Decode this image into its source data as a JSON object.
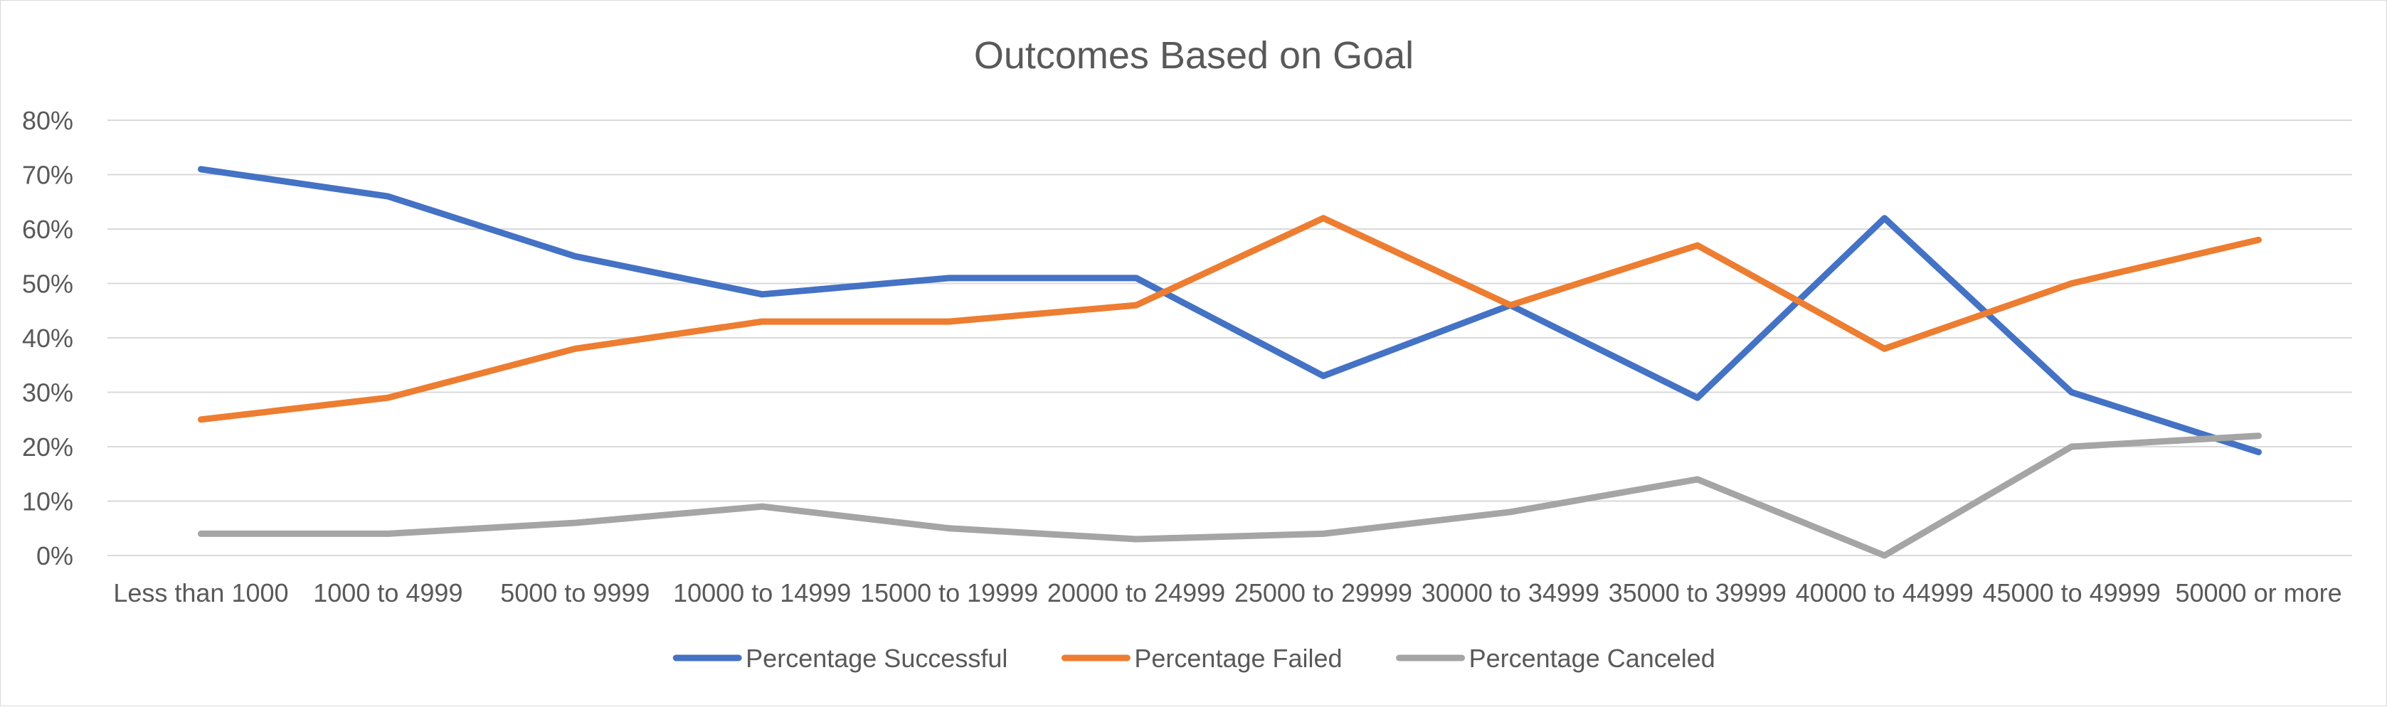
{
  "chart_data": {
    "type": "line",
    "title": "Outcomes Based on Goal",
    "xlabel": "",
    "ylabel": "",
    "ylim": [
      0,
      0.8
    ],
    "ytick_step": 0.1,
    "ytick_labels": [
      "0%",
      "10%",
      "20%",
      "30%",
      "40%",
      "50%",
      "60%",
      "70%",
      "80%"
    ],
    "grid": true,
    "legend_position": "bottom",
    "categories": [
      "Less than 1000",
      "1000 to 4999",
      "5000 to 9999",
      "10000 to 14999",
      "15000 to 19999",
      "20000 to 24999",
      "25000 to 29999",
      "30000 to 34999",
      "35000 to 39999",
      "40000 to 44999",
      "45000 to 49999",
      "50000 or more"
    ],
    "series": [
      {
        "name": "Percentage Successful",
        "color": "#4472c4",
        "values": [
          0.71,
          0.66,
          0.55,
          0.48,
          0.51,
          0.51,
          0.33,
          0.46,
          0.29,
          0.62,
          0.3,
          0.19
        ]
      },
      {
        "name": "Percentage Failed",
        "color": "#ed7d31",
        "values": [
          0.25,
          0.29,
          0.38,
          0.43,
          0.43,
          0.46,
          0.62,
          0.46,
          0.57,
          0.38,
          0.5,
          0.58
        ]
      },
      {
        "name": "Percentage Canceled",
        "color": "#a5a5a5",
        "values": [
          0.04,
          0.04,
          0.06,
          0.09,
          0.05,
          0.03,
          0.04,
          0.08,
          0.14,
          0.0,
          0.2,
          0.22
        ]
      }
    ]
  }
}
